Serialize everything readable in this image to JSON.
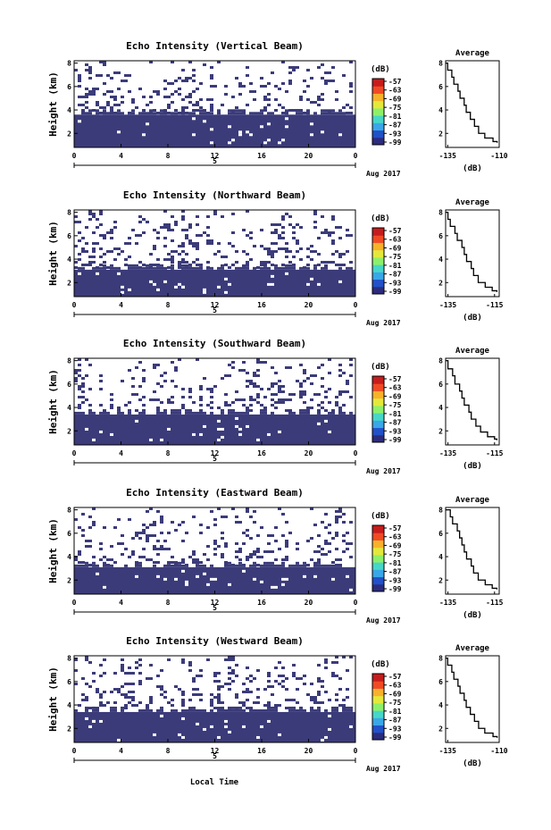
{
  "figure": {
    "xlabel": "Local Time",
    "date_label": "Aug 2017",
    "day_label": "5",
    "colorbar_unit": "(dB)",
    "colorbar_ticks": [
      "-57",
      "-63",
      "-69",
      "-75",
      "-81",
      "-87",
      "-93",
      "-99"
    ],
    "colors": {
      "low": "#3b3b7a",
      "scale": [
        "#2b2c7e",
        "#2251c8",
        "#3aa7e8",
        "#46d7c8",
        "#8ef06a",
        "#e4e83a",
        "#f7b12a",
        "#f04a25",
        "#c61c1c"
      ]
    }
  },
  "chart_data": [
    {
      "type": "heatmap",
      "title": "Echo Intensity (Vertical Beam)",
      "ylabel": "Height (km)",
      "x_ticks": [
        "0",
        "4",
        "8",
        "12",
        "16",
        "20",
        "0"
      ],
      "y_ticks": [
        "2",
        "4",
        "6",
        "8"
      ],
      "x_range": [
        0,
        24
      ],
      "y_range": [
        0.8,
        8.2
      ],
      "saturated_below_km": 3.6,
      "profile": {
        "title": "Average",
        "xlabel": "(dB)",
        "x_ticks": [
          "-135",
          "-110"
        ],
        "y_ticks": [
          "2",
          "4",
          "6",
          "8"
        ],
        "xlim": [
          -136,
          -110
        ],
        "ylim": [
          0.8,
          8.2
        ],
        "points": [
          [
            -136,
            8
          ],
          [
            -135,
            7.4
          ],
          [
            -133,
            6.8
          ],
          [
            -132,
            6.2
          ],
          [
            -130,
            5.6
          ],
          [
            -129,
            5.0
          ],
          [
            -127,
            4.4
          ],
          [
            -126,
            3.8
          ],
          [
            -124,
            3.2
          ],
          [
            -122,
            2.6
          ],
          [
            -120,
            2.0
          ],
          [
            -117,
            1.6
          ],
          [
            -113,
            1.3
          ],
          [
            -111,
            1.2
          ]
        ]
      }
    },
    {
      "type": "heatmap",
      "title": "Echo Intensity (Northward Beam)",
      "ylabel": "Height (km)",
      "x_ticks": [
        "0",
        "4",
        "8",
        "12",
        "16",
        "20",
        "0"
      ],
      "y_ticks": [
        "2",
        "4",
        "6",
        "8"
      ],
      "x_range": [
        0,
        24
      ],
      "y_range": [
        0.8,
        8.2
      ],
      "saturated_below_km": 3.1,
      "profile": {
        "title": "Average",
        "xlabel": "(dB)",
        "x_ticks": [
          "-135",
          "-115"
        ],
        "y_ticks": [
          "2",
          "4",
          "6",
          "8"
        ],
        "xlim": [
          -136,
          -113
        ],
        "ylim": [
          0.8,
          8.2
        ],
        "points": [
          [
            -136,
            8
          ],
          [
            -135,
            7.4
          ],
          [
            -134,
            6.8
          ],
          [
            -132,
            6.2
          ],
          [
            -131,
            5.6
          ],
          [
            -129,
            5.0
          ],
          [
            -128,
            4.4
          ],
          [
            -127,
            3.8
          ],
          [
            -125,
            3.2
          ],
          [
            -124,
            2.6
          ],
          [
            -122,
            2.0
          ],
          [
            -119,
            1.6
          ],
          [
            -116,
            1.3
          ],
          [
            -114,
            1.2
          ]
        ]
      }
    },
    {
      "type": "heatmap",
      "title": "Echo Intensity (Southward Beam)",
      "ylabel": "Height (km)",
      "x_ticks": [
        "0",
        "4",
        "8",
        "12",
        "16",
        "20",
        "0"
      ],
      "y_ticks": [
        "2",
        "4",
        "6",
        "8"
      ],
      "x_range": [
        0,
        24
      ],
      "y_range": [
        0.8,
        8.2
      ],
      "saturated_below_km": 3.4,
      "profile": {
        "title": "Average",
        "xlabel": "(dB)",
        "x_ticks": [
          "-135",
          "-115"
        ],
        "y_ticks": [
          "2",
          "4",
          "6",
          "8"
        ],
        "xlim": [
          -136,
          -113
        ],
        "ylim": [
          0.8,
          8.2
        ],
        "points": [
          [
            -136,
            8
          ],
          [
            -135,
            7.3
          ],
          [
            -133,
            6.7
          ],
          [
            -132,
            6.0
          ],
          [
            -130,
            5.4
          ],
          [
            -129,
            4.8
          ],
          [
            -128,
            4.2
          ],
          [
            -126,
            3.6
          ],
          [
            -125,
            3.0
          ],
          [
            -123,
            2.4
          ],
          [
            -121,
            1.9
          ],
          [
            -118,
            1.5
          ],
          [
            -115,
            1.3
          ],
          [
            -114,
            1.2
          ]
        ]
      }
    },
    {
      "type": "heatmap",
      "title": "Echo Intensity (Eastward Beam)",
      "ylabel": "Height (km)",
      "x_ticks": [
        "0",
        "4",
        "8",
        "12",
        "16",
        "20",
        "0"
      ],
      "y_ticks": [
        "2",
        "4",
        "6",
        "8"
      ],
      "x_range": [
        0,
        24
      ],
      "y_range": [
        0.8,
        8.2
      ],
      "saturated_below_km": 3.1,
      "profile": {
        "title": "Average",
        "xlabel": "(dB)",
        "x_ticks": [
          "-135",
          "-115"
        ],
        "y_ticks": [
          "2",
          "4",
          "6",
          "8"
        ],
        "xlim": [
          -136,
          -113
        ],
        "ylim": [
          0.8,
          8.2
        ],
        "points": [
          [
            -136,
            8
          ],
          [
            -134,
            7.4
          ],
          [
            -133,
            6.8
          ],
          [
            -131,
            6.2
          ],
          [
            -130,
            5.6
          ],
          [
            -129,
            5.0
          ],
          [
            -128,
            4.4
          ],
          [
            -127,
            3.8
          ],
          [
            -125,
            3.2
          ],
          [
            -124,
            2.6
          ],
          [
            -122,
            2.0
          ],
          [
            -119,
            1.6
          ],
          [
            -116,
            1.3
          ],
          [
            -114,
            1.2
          ]
        ]
      }
    },
    {
      "type": "heatmap",
      "title": "Echo Intensity (Westward Beam)",
      "ylabel": "Height (km)",
      "x_ticks": [
        "0",
        "4",
        "8",
        "12",
        "16",
        "20",
        "0"
      ],
      "y_ticks": [
        "2",
        "4",
        "6",
        "8"
      ],
      "x_range": [
        0,
        24
      ],
      "y_range": [
        0.8,
        8.2
      ],
      "saturated_below_km": 3.4,
      "profile": {
        "title": "Average",
        "xlabel": "(dB)",
        "x_ticks": [
          "-135",
          "-110"
        ],
        "y_ticks": [
          "2",
          "4",
          "6",
          "8"
        ],
        "xlim": [
          -136,
          -110
        ],
        "ylim": [
          0.8,
          8.2
        ],
        "points": [
          [
            -136,
            8
          ],
          [
            -135,
            7.4
          ],
          [
            -133,
            6.8
          ],
          [
            -132,
            6.2
          ],
          [
            -130,
            5.6
          ],
          [
            -129,
            5.0
          ],
          [
            -127,
            4.4
          ],
          [
            -126,
            3.8
          ],
          [
            -124,
            3.2
          ],
          [
            -122,
            2.6
          ],
          [
            -120,
            2.0
          ],
          [
            -117,
            1.6
          ],
          [
            -113,
            1.3
          ],
          [
            -111,
            1.2
          ]
        ]
      }
    }
  ]
}
